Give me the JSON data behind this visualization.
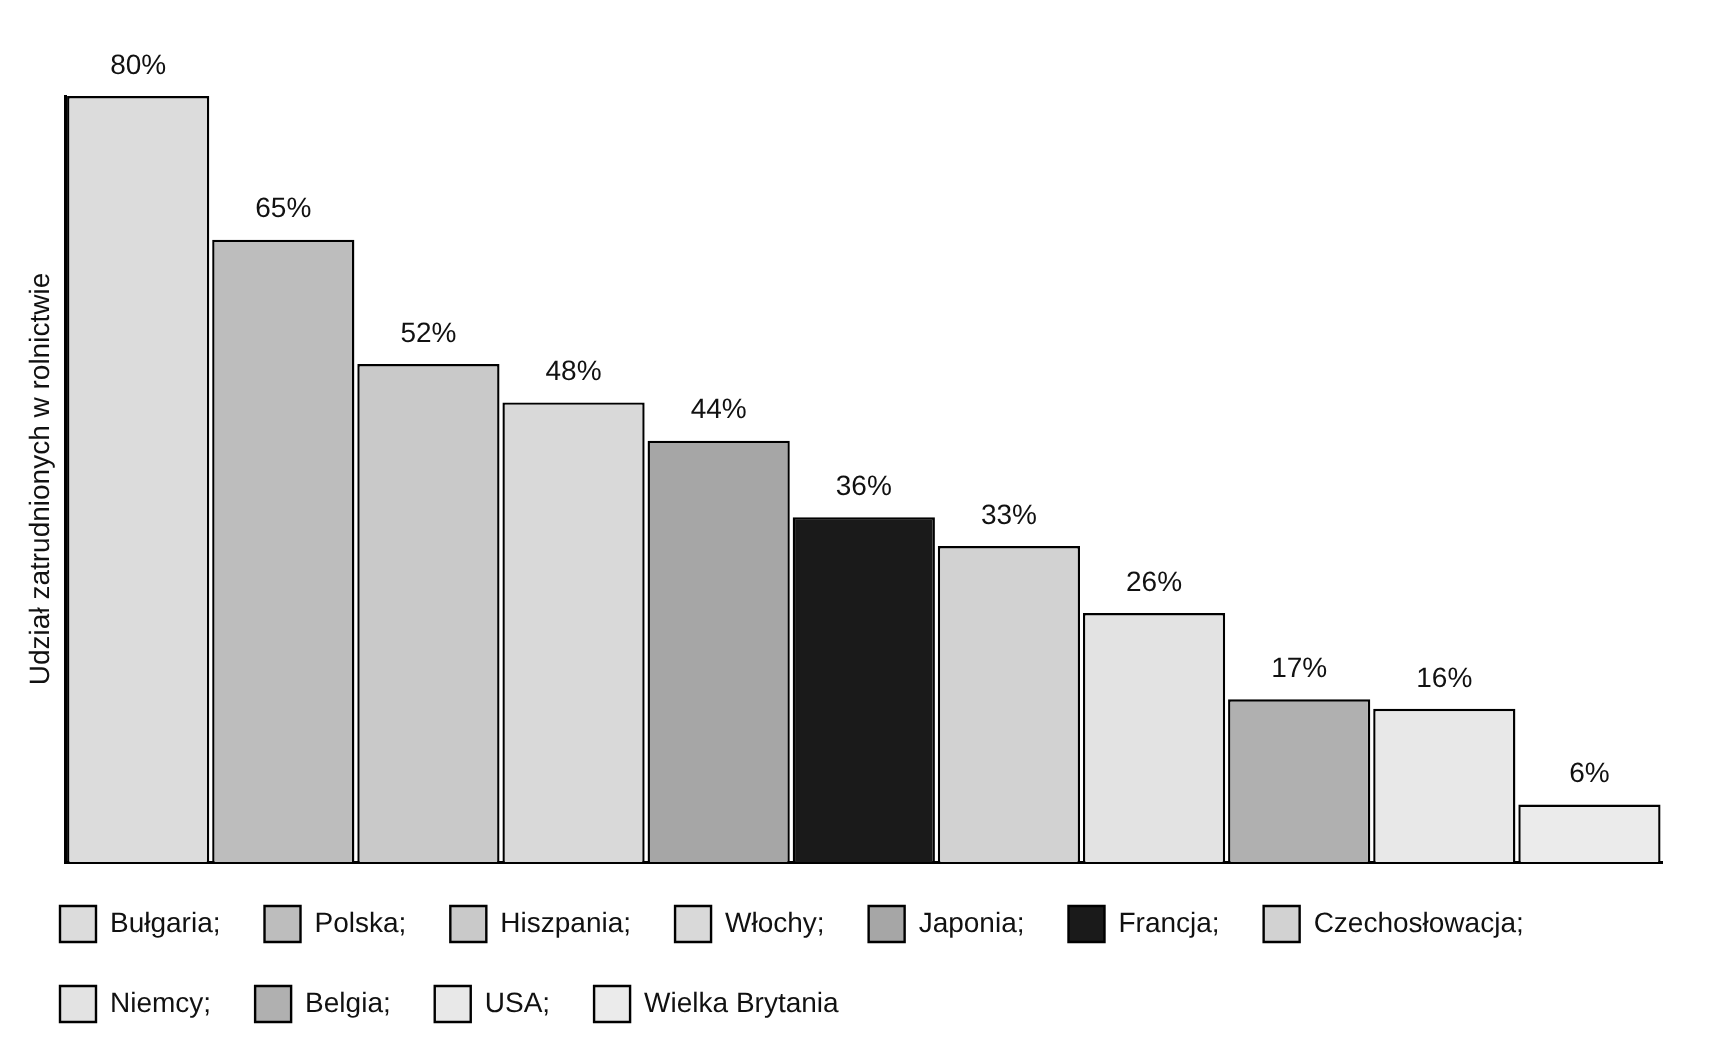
{
  "chart_data": {
    "type": "bar",
    "ylabel": "Udział zatrudnionych w rolnictwie",
    "categories": [
      null,
      null,
      null,
      null,
      null,
      null,
      null,
      null,
      null,
      null,
      null
    ],
    "stacked": true,
    "series": [
      {
        "name": "Bułgaria;",
        "color": "#dcdcdc",
        "values": [
          80,
          null,
          null,
          null,
          null,
          null,
          null,
          null,
          null,
          null,
          null
        ],
        "value_labels": [
          "80%",
          null,
          null,
          null,
          null,
          null,
          null,
          null,
          null,
          null,
          null
        ]
      },
      {
        "name": "Polska;",
        "color": "#bdbdbd",
        "values": [
          null,
          65,
          null,
          null,
          null,
          null,
          null,
          null,
          null,
          null,
          null
        ],
        "value_labels": [
          null,
          "65%",
          null,
          null,
          null,
          null,
          null,
          null,
          null,
          null,
          null
        ]
      },
      {
        "name": "Hiszpania;",
        "color": "#c9c9c9",
        "values": [
          null,
          null,
          52,
          null,
          null,
          null,
          null,
          null,
          null,
          null,
          null
        ],
        "value_labels": [
          null,
          null,
          "52%",
          null,
          null,
          null,
          null,
          null,
          null,
          null,
          null
        ]
      },
      {
        "name": "Włochy;",
        "color": "#d9d9d9",
        "values": [
          null,
          null,
          null,
          48,
          null,
          null,
          null,
          null,
          null,
          null,
          null
        ],
        "value_labels": [
          null,
          null,
          null,
          "48%",
          null,
          null,
          null,
          null,
          null,
          null,
          null
        ]
      },
      {
        "name": "Japonia;",
        "color": "#a6a6a6",
        "values": [
          null,
          null,
          null,
          null,
          44,
          null,
          null,
          null,
          null,
          null,
          null
        ],
        "value_labels": [
          null,
          null,
          null,
          null,
          "44%",
          null,
          null,
          null,
          null,
          null,
          null
        ]
      },
      {
        "name": "Francja;",
        "color": "#1a1a1a",
        "values": [
          null,
          null,
          null,
          null,
          null,
          36,
          null,
          null,
          null,
          null,
          null
        ],
        "value_labels": [
          null,
          null,
          null,
          null,
          null,
          "36%",
          null,
          null,
          null,
          null,
          null
        ]
      },
      {
        "name": "Czechosłowacja;",
        "color": "#d2d2d2",
        "values": [
          null,
          null,
          null,
          null,
          null,
          null,
          33,
          null,
          null,
          null,
          null
        ],
        "value_labels": [
          null,
          null,
          null,
          null,
          null,
          null,
          "33%",
          null,
          null,
          null,
          null
        ]
      },
      {
        "name": "Niemcy;",
        "color": "#e3e3e3",
        "values": [
          null,
          null,
          null,
          null,
          null,
          null,
          null,
          26,
          null,
          null,
          null
        ],
        "value_labels": [
          null,
          null,
          null,
          null,
          null,
          null,
          null,
          "26%",
          null,
          null,
          null
        ]
      },
      {
        "name": "Belgia;",
        "color": "#b0b0b0",
        "values": [
          null,
          null,
          null,
          null,
          null,
          null,
          null,
          null,
          17,
          null,
          null
        ],
        "value_labels": [
          null,
          null,
          null,
          null,
          null,
          null,
          null,
          null,
          "17%",
          null,
          null
        ]
      },
      {
        "name": "USA;",
        "color": "#e8e8e8",
        "values": [
          null,
          null,
          null,
          null,
          null,
          null,
          null,
          null,
          null,
          16,
          null
        ],
        "value_labels": [
          null,
          null,
          null,
          null,
          null,
          null,
          null,
          null,
          null,
          "16%",
          null
        ]
      },
      {
        "name": "Wielka Brytania",
        "color": "#ebebeb",
        "values": [
          null,
          null,
          null,
          null,
          null,
          null,
          null,
          null,
          null,
          null,
          6
        ],
        "value_labels": [
          null,
          null,
          null,
          null,
          null,
          null,
          null,
          null,
          null,
          null,
          "6%"
        ]
      }
    ],
    "legend": "bottom",
    "tick_labels": false,
    "grid": false
  }
}
